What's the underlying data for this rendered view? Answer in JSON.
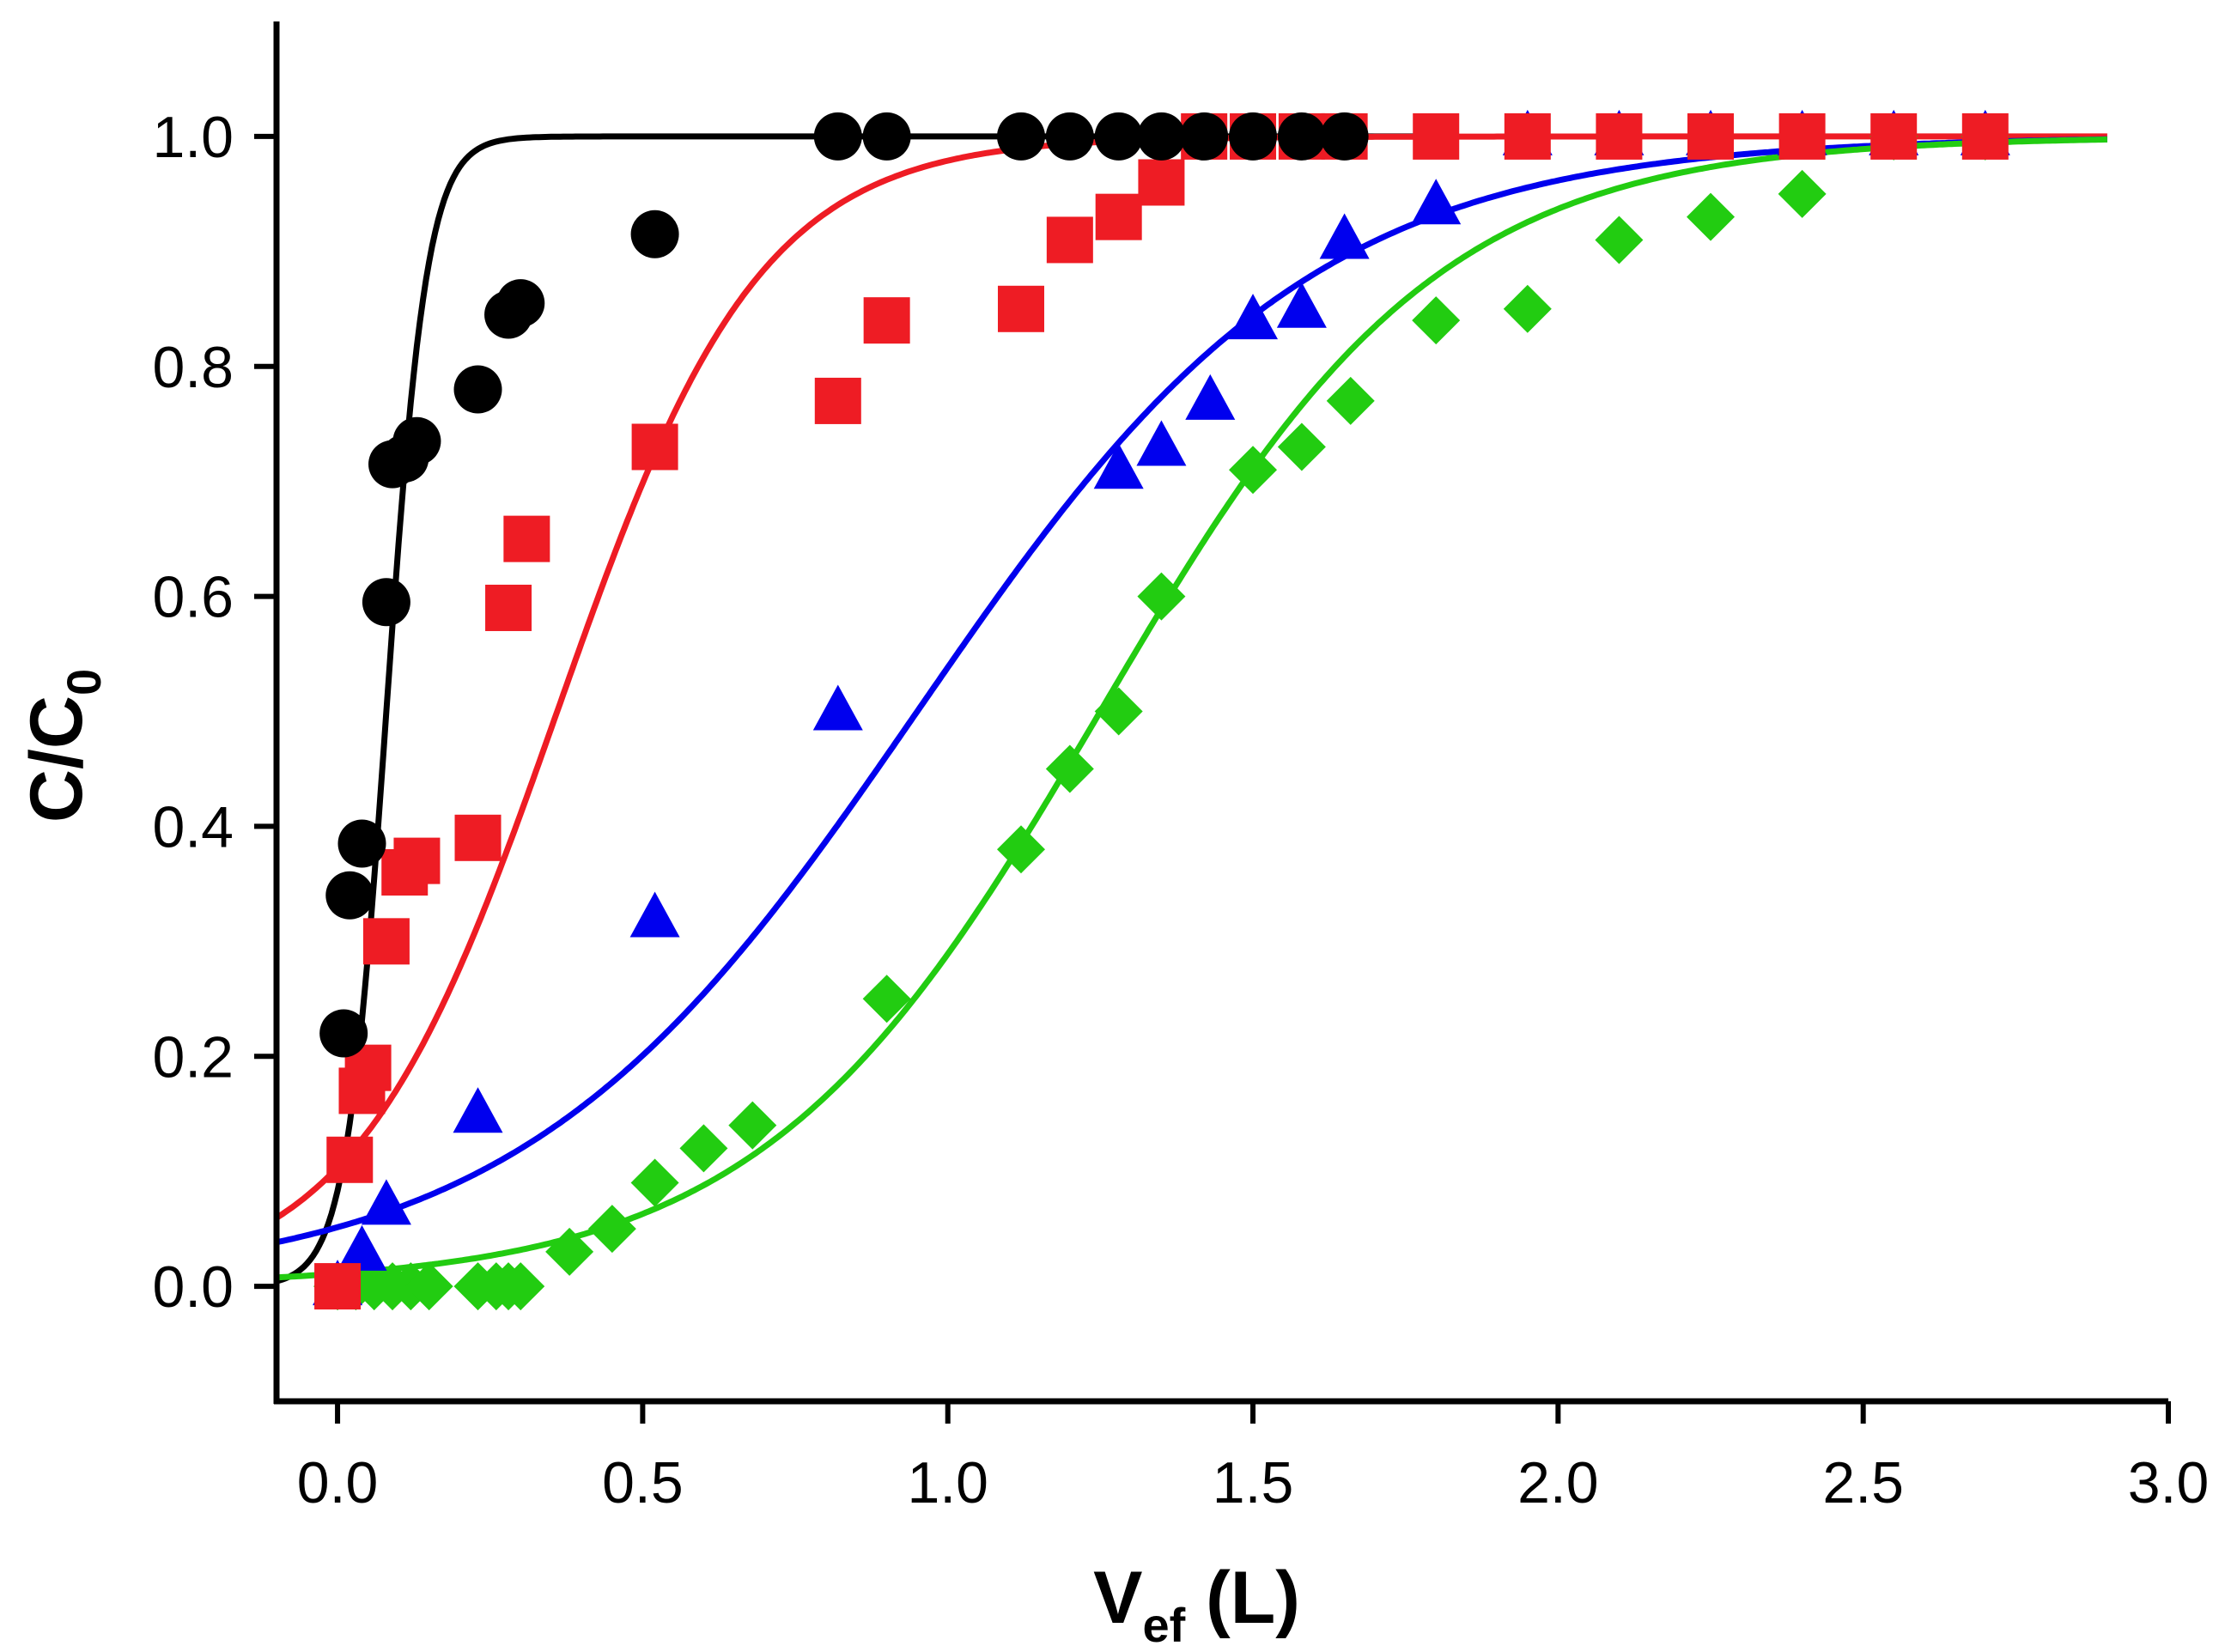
{
  "chart_data": {
    "type": "scatter",
    "xlabel": {
      "main": "V",
      "sub": "ef",
      "suffix": " (L)"
    },
    "ylabel": {
      "main": "C/C",
      "sub": "0"
    },
    "xlim": [
      -0.1,
      3.0
    ],
    "ylim": [
      -0.1,
      1.1
    ],
    "xticks": [
      "0.0",
      "0.5",
      "1.0",
      "1.5",
      "2.0",
      "2.5",
      "3.0"
    ],
    "xtick_values": [
      0.0,
      0.5,
      1.0,
      1.5,
      2.0,
      2.5,
      3.0
    ],
    "yticks": [
      "0.0",
      "0.2",
      "0.4",
      "0.6",
      "0.8",
      "1.0"
    ],
    "ytick_values": [
      0.0,
      0.2,
      0.4,
      0.6,
      0.8,
      1.0
    ],
    "grid": false,
    "legend": "none",
    "series": [
      {
        "color": "#000000",
        "marker": "circle",
        "fit": {
          "model": "logistic",
          "center": 0.08,
          "slope": 30,
          "x_range": [
            -0.1,
            1.8
          ]
        },
        "points": [
          [
            0.01,
            0.22
          ],
          [
            0.02,
            0.34
          ],
          [
            0.04,
            0.385
          ],
          [
            0.08,
            0.595
          ],
          [
            0.09,
            0.715
          ],
          [
            0.11,
            0.72
          ],
          [
            0.13,
            0.735
          ],
          [
            0.23,
            0.78
          ],
          [
            0.28,
            0.845
          ],
          [
            0.3,
            0.855
          ],
          [
            0.52,
            0.915
          ],
          [
            0.82,
            1.0
          ],
          [
            0.9,
            1.0
          ],
          [
            1.12,
            1.0
          ],
          [
            1.2,
            1.0
          ],
          [
            1.28,
            1.0
          ],
          [
            1.35,
            1.0
          ],
          [
            1.42,
            1.0
          ],
          [
            1.5,
            1.0
          ],
          [
            1.58,
            1.0
          ],
          [
            1.65,
            1.0
          ]
        ]
      },
      {
        "color": "#ee1c24",
        "marker": "square",
        "fit": {
          "model": "logistic",
          "center": 0.36,
          "slope": 6,
          "x_range": [
            -0.1,
            2.9
          ]
        },
        "points": [
          [
            0.0,
            0.0
          ],
          [
            0.02,
            0.11
          ],
          [
            0.04,
            0.17
          ],
          [
            0.05,
            0.19
          ],
          [
            0.08,
            0.3
          ],
          [
            0.11,
            0.36
          ],
          [
            0.13,
            0.37
          ],
          [
            0.23,
            0.39
          ],
          [
            0.28,
            0.59
          ],
          [
            0.31,
            0.65
          ],
          [
            0.52,
            0.73
          ],
          [
            0.82,
            0.77
          ],
          [
            0.9,
            0.84
          ],
          [
            1.12,
            0.85
          ],
          [
            1.2,
            0.91
          ],
          [
            1.28,
            0.93
          ],
          [
            1.35,
            0.96
          ],
          [
            1.42,
            1.0
          ],
          [
            1.5,
            1.0
          ],
          [
            1.58,
            1.0
          ],
          [
            1.65,
            1.0
          ],
          [
            1.8,
            1.0
          ],
          [
            1.95,
            1.0
          ],
          [
            2.1,
            1.0
          ],
          [
            2.25,
            1.0
          ],
          [
            2.4,
            1.0
          ],
          [
            2.55,
            1.0
          ],
          [
            2.7,
            1.0
          ]
        ]
      },
      {
        "color": "#0000ee",
        "marker": "triangle",
        "fit": {
          "model": "logistic",
          "center": 0.95,
          "slope": 3.07,
          "x_range": [
            -0.1,
            2.9
          ]
        },
        "points": [
          [
            0.0,
            0.0
          ],
          [
            0.04,
            0.03
          ],
          [
            0.08,
            0.07
          ],
          [
            0.23,
            0.15
          ],
          [
            0.52,
            0.32
          ],
          [
            0.82,
            0.5
          ],
          [
            1.28,
            0.71
          ],
          [
            1.35,
            0.73
          ],
          [
            1.43,
            0.77
          ],
          [
            1.5,
            0.84
          ],
          [
            1.58,
            0.85
          ],
          [
            1.65,
            0.91
          ],
          [
            1.8,
            0.94
          ],
          [
            1.95,
            1.0
          ],
          [
            2.1,
            1.0
          ],
          [
            2.25,
            1.0
          ],
          [
            2.4,
            1.0
          ],
          [
            2.55,
            1.0
          ],
          [
            2.7,
            1.0
          ]
        ]
      },
      {
        "color": "#22cc11",
        "marker": "diamond",
        "fit": {
          "model": "logistic",
          "center": 1.25,
          "slope": 3.6,
          "x_range": [
            -0.1,
            2.9
          ]
        },
        "points": [
          [
            0.0,
            0.0
          ],
          [
            0.03,
            0.0
          ],
          [
            0.06,
            0.0
          ],
          [
            0.09,
            0.0
          ],
          [
            0.12,
            0.0
          ],
          [
            0.15,
            0.0
          ],
          [
            0.23,
            0.0
          ],
          [
            0.26,
            0.0
          ],
          [
            0.28,
            0.0
          ],
          [
            0.3,
            0.0
          ],
          [
            0.38,
            0.03
          ],
          [
            0.45,
            0.05
          ],
          [
            0.52,
            0.09
          ],
          [
            0.6,
            0.12
          ],
          [
            0.68,
            0.14
          ],
          [
            0.9,
            0.25
          ],
          [
            1.12,
            0.38
          ],
          [
            1.2,
            0.45
          ],
          [
            1.28,
            0.5
          ],
          [
            1.35,
            0.6
          ],
          [
            1.5,
            0.71
          ],
          [
            1.58,
            0.73
          ],
          [
            1.66,
            0.77
          ],
          [
            1.8,
            0.84
          ],
          [
            1.95,
            0.85
          ],
          [
            2.1,
            0.91
          ],
          [
            2.25,
            0.93
          ],
          [
            2.4,
            0.95
          ],
          [
            2.55,
            1.0
          ],
          [
            2.7,
            1.0
          ]
        ]
      }
    ]
  }
}
